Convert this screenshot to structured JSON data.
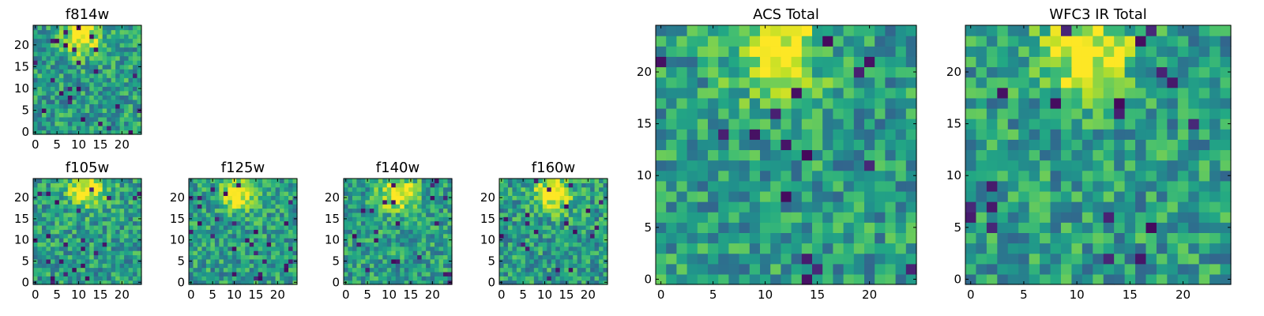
{
  "chart_data": [
    {
      "type": "heatmap",
      "title": "f814w",
      "seed": 11,
      "grid": [
        25,
        25
      ],
      "xlim": [
        -0.5,
        24.5
      ],
      "ylim": [
        -0.5,
        24.5
      ],
      "xticks": [
        "0",
        "5",
        "10",
        "15",
        "20"
      ],
      "yticks": [
        "0",
        "5",
        "10",
        "15",
        "20"
      ],
      "bright_center": [
        11,
        22
      ],
      "colormap": "viridis"
    },
    {
      "type": "heatmap",
      "title": "f105w",
      "seed": 23,
      "grid": [
        25,
        25
      ],
      "xlim": [
        -0.5,
        24.5
      ],
      "ylim": [
        -0.5,
        24.5
      ],
      "xticks": [
        "0",
        "5",
        "10",
        "15",
        "20"
      ],
      "yticks": [
        "0",
        "5",
        "10",
        "15",
        "20"
      ],
      "bright_center": [
        12,
        22
      ],
      "colormap": "viridis"
    },
    {
      "type": "heatmap",
      "title": "f125w",
      "seed": 37,
      "grid": [
        25,
        25
      ],
      "xlim": [
        -0.5,
        24.5
      ],
      "ylim": [
        -0.5,
        24.5
      ],
      "xticks": [
        "0",
        "5",
        "10",
        "15",
        "20"
      ],
      "yticks": [
        "0",
        "5",
        "10",
        "15",
        "20"
      ],
      "bright_center": [
        11,
        21
      ],
      "colormap": "viridis"
    },
    {
      "type": "heatmap",
      "title": "f140w",
      "seed": 41,
      "grid": [
        25,
        25
      ],
      "xlim": [
        -0.5,
        24.5
      ],
      "ylim": [
        -0.5,
        24.5
      ],
      "xticks": [
        "0",
        "5",
        "10",
        "15",
        "20"
      ],
      "yticks": [
        "0",
        "5",
        "10",
        "15",
        "20"
      ],
      "bright_center": [
        12,
        21
      ],
      "colormap": "viridis"
    },
    {
      "type": "heatmap",
      "title": "f160w",
      "seed": 53,
      "grid": [
        25,
        25
      ],
      "xlim": [
        -0.5,
        24.5
      ],
      "ylim": [
        -0.5,
        24.5
      ],
      "xticks": [
        "0",
        "5",
        "10",
        "15",
        "20"
      ],
      "yticks": [
        "0",
        "5",
        "10",
        "15",
        "20"
      ],
      "bright_center": [
        12,
        21
      ],
      "colormap": "viridis"
    },
    {
      "type": "heatmap",
      "title": "ACS Total",
      "seed": 67,
      "grid": [
        25,
        25
      ],
      "xlim": [
        -0.5,
        24.5
      ],
      "ylim": [
        -0.5,
        24.5
      ],
      "xticks": [
        "0",
        "5",
        "10",
        "15",
        "20"
      ],
      "yticks": [
        "0",
        "5",
        "10",
        "15",
        "20"
      ],
      "bright_center": [
        11,
        22
      ],
      "colormap": "viridis"
    },
    {
      "type": "heatmap",
      "title": "WFC3 IR Total",
      "seed": 79,
      "grid": [
        25,
        25
      ],
      "xlim": [
        -0.5,
        24.5
      ],
      "ylim": [
        -0.5,
        24.5
      ],
      "xticks": [
        "0",
        "5",
        "10",
        "15",
        "20"
      ],
      "yticks": [
        "0",
        "5",
        "10",
        "15",
        "20"
      ],
      "bright_center": [
        11,
        22
      ],
      "colormap": "viridis"
    }
  ]
}
